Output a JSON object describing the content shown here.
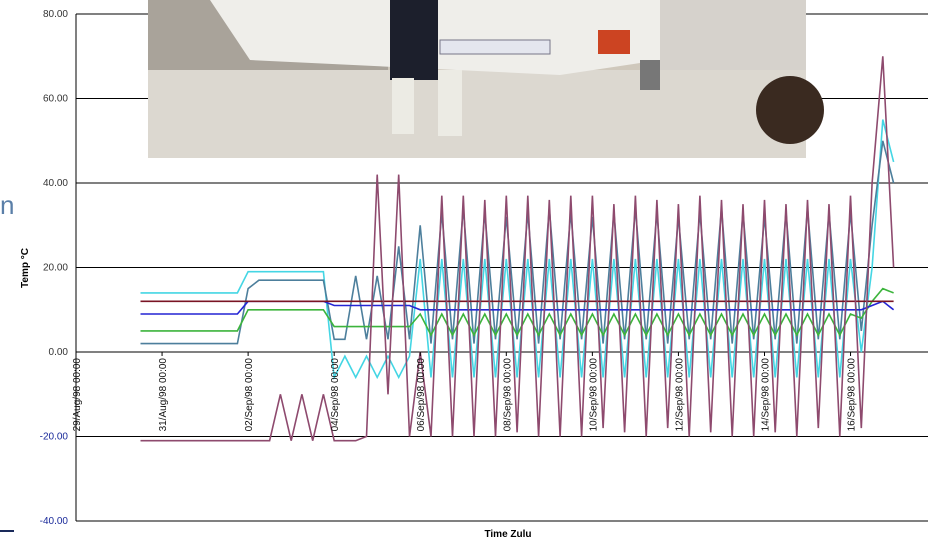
{
  "fragment": "n",
  "chart_data": {
    "type": "line",
    "y_label": "Temp °C",
    "x_label": "Time Zulu",
    "ylim": [
      -40,
      80
    ],
    "yticks": [
      {
        "value": -40,
        "label": "-40.00"
      },
      {
        "value": -20,
        "label": "-20.00"
      },
      {
        "value": 0,
        "label": "0.00"
      },
      {
        "value": 20,
        "label": "20.00"
      },
      {
        "value": 40,
        "label": "40.00"
      },
      {
        "value": 60,
        "label": "60.00"
      },
      {
        "value": 80,
        "label": "80.00"
      }
    ],
    "xlim": [
      0,
      19.8
    ],
    "xticks": [
      {
        "value": 0,
        "label": "29/Aug/98 00:00"
      },
      {
        "value": 2,
        "label": "31/Aug/98 00:00"
      },
      {
        "value": 4,
        "label": "02/Sep/98 00:00"
      },
      {
        "value": 6,
        "label": "04/Sep/98 00:00"
      },
      {
        "value": 8,
        "label": "06/Sep/98 00:00"
      },
      {
        "value": 10,
        "label": "08/Sep/98 00:00"
      },
      {
        "value": 12,
        "label": "10/Sep/98 00:00"
      },
      {
        "value": 14,
        "label": "12/Sep/98 00:00"
      },
      {
        "value": 16,
        "label": "14/Sep/98 00:00"
      },
      {
        "value": 18,
        "label": "16/Sep/98 00:00"
      }
    ],
    "x": [
      1.5,
      1.75,
      2,
      2.25,
      2.5,
      2.75,
      3,
      3.25,
      3.5,
      3.75,
      4,
      4.25,
      4.5,
      4.75,
      5,
      5.25,
      5.5,
      5.75,
      6,
      6.25,
      6.5,
      6.75,
      7,
      7.25,
      7.5,
      7.75,
      8,
      8.25,
      8.5,
      8.75,
      9,
      9.25,
      9.5,
      9.75,
      10,
      10.25,
      10.5,
      10.75,
      11,
      11.25,
      11.5,
      11.75,
      12,
      12.25,
      12.5,
      12.75,
      13,
      13.25,
      13.5,
      13.75,
      14,
      14.25,
      14.5,
      14.75,
      15,
      15.25,
      15.5,
      15.75,
      16,
      16.25,
      16.5,
      16.75,
      17,
      17.25,
      17.5,
      17.75,
      18,
      18.25,
      18.5,
      18.75,
      19,
      19.25
    ],
    "series": [
      {
        "color": "#44d6e4",
        "values": [
          14,
          14,
          14,
          14,
          14,
          14,
          14,
          14,
          14,
          14,
          19,
          19,
          19,
          19,
          19,
          19,
          19,
          19,
          -6,
          -1,
          -6,
          -1,
          -6,
          -1,
          -6,
          -1,
          22,
          -6,
          22,
          -6,
          22,
          -6,
          22,
          -6,
          22,
          -6,
          22,
          -6,
          22,
          -6,
          22,
          -6,
          22,
          -6,
          22,
          -6,
          22,
          -6,
          22,
          -6,
          22,
          -6,
          22,
          -6,
          22,
          -6,
          22,
          -6,
          22,
          -6,
          22,
          -6,
          22,
          -6,
          22,
          -6,
          22,
          0,
          20,
          55,
          45,
          null
        ]
      },
      {
        "color": "#4d7f9c",
        "values": [
          2,
          2,
          2,
          2,
          2,
          2,
          2,
          2,
          2,
          2,
          15,
          17,
          17,
          17,
          17,
          17,
          17,
          17,
          3,
          3,
          18,
          3,
          18,
          3,
          25,
          3,
          30,
          2,
          33,
          3,
          34,
          2,
          33,
          3,
          32,
          3,
          33,
          2,
          34,
          3,
          33,
          3,
          32,
          2,
          33,
          3,
          34,
          3,
          33,
          2,
          32,
          3,
          33,
          3,
          34,
          2,
          33,
          3,
          32,
          3,
          33,
          2,
          34,
          3,
          33,
          3,
          33,
          5,
          30,
          50,
          40,
          null
        ]
      },
      {
        "color": "#3cb43c",
        "values": [
          5,
          5,
          5,
          5,
          5,
          5,
          5,
          5,
          5,
          5,
          10,
          10,
          10,
          10,
          10,
          10,
          10,
          10,
          6,
          6,
          6,
          6,
          6,
          6,
          6,
          6,
          9,
          4,
          9,
          4,
          9,
          4,
          9,
          4,
          9,
          4,
          9,
          4,
          9,
          4,
          9,
          4,
          9,
          4,
          9,
          4,
          9,
          4,
          9,
          4,
          9,
          4,
          9,
          4,
          9,
          4,
          9,
          4,
          9,
          4,
          9,
          4,
          9,
          4,
          9,
          4,
          9,
          8,
          12,
          15,
          14,
          null
        ]
      },
      {
        "color": "#2424d4",
        "values": [
          9,
          9,
          9,
          9,
          9,
          9,
          9,
          9,
          9,
          9,
          12,
          12,
          12,
          12,
          12,
          12,
          12,
          12,
          11,
          11,
          11,
          11,
          11,
          11,
          11,
          11,
          10,
          10,
          10,
          10,
          10,
          10,
          10,
          10,
          10,
          10,
          10,
          10,
          10,
          10,
          10,
          10,
          10,
          10,
          10,
          10,
          10,
          10,
          10,
          10,
          10,
          10,
          10,
          10,
          10,
          10,
          10,
          10,
          10,
          10,
          10,
          10,
          10,
          10,
          10,
          10,
          10,
          10,
          11,
          12,
          10,
          null
        ]
      },
      {
        "color": "#7a1424",
        "values": [
          12,
          12,
          12,
          12,
          12,
          12,
          12,
          12,
          12,
          12,
          12,
          12,
          12,
          12,
          12,
          12,
          12,
          12,
          12,
          12,
          12,
          12,
          12,
          12,
          12,
          12,
          12,
          12,
          12,
          12,
          12,
          12,
          12,
          12,
          12,
          12,
          12,
          12,
          12,
          12,
          12,
          12,
          12,
          12,
          12,
          12,
          12,
          12,
          12,
          12,
          12,
          12,
          12,
          12,
          12,
          12,
          12,
          12,
          12,
          12,
          12,
          12,
          12,
          12,
          12,
          12,
          12,
          12,
          12,
          12,
          12,
          null
        ]
      },
      {
        "color": "#8e4a6e",
        "values": [
          -21,
          -21,
          -21,
          -21,
          -21,
          -21,
          -21,
          -21,
          -21,
          -21,
          -21,
          -21,
          -21,
          -10,
          -21,
          -10,
          -21,
          -10,
          -21,
          -21,
          -21,
          -20,
          42,
          -10,
          42,
          -20,
          0,
          -20,
          37,
          -20,
          37,
          -20,
          36,
          -20,
          37,
          -19,
          37,
          -20,
          36,
          -20,
          37,
          -20,
          37,
          -18,
          35,
          -19,
          37,
          -20,
          36,
          -18,
          35,
          -20,
          37,
          -19,
          36,
          -20,
          35,
          -20,
          36,
          -19,
          35,
          -20,
          36,
          -18,
          35,
          -20,
          37,
          -18,
          40,
          70,
          20,
          null
        ]
      }
    ]
  }
}
